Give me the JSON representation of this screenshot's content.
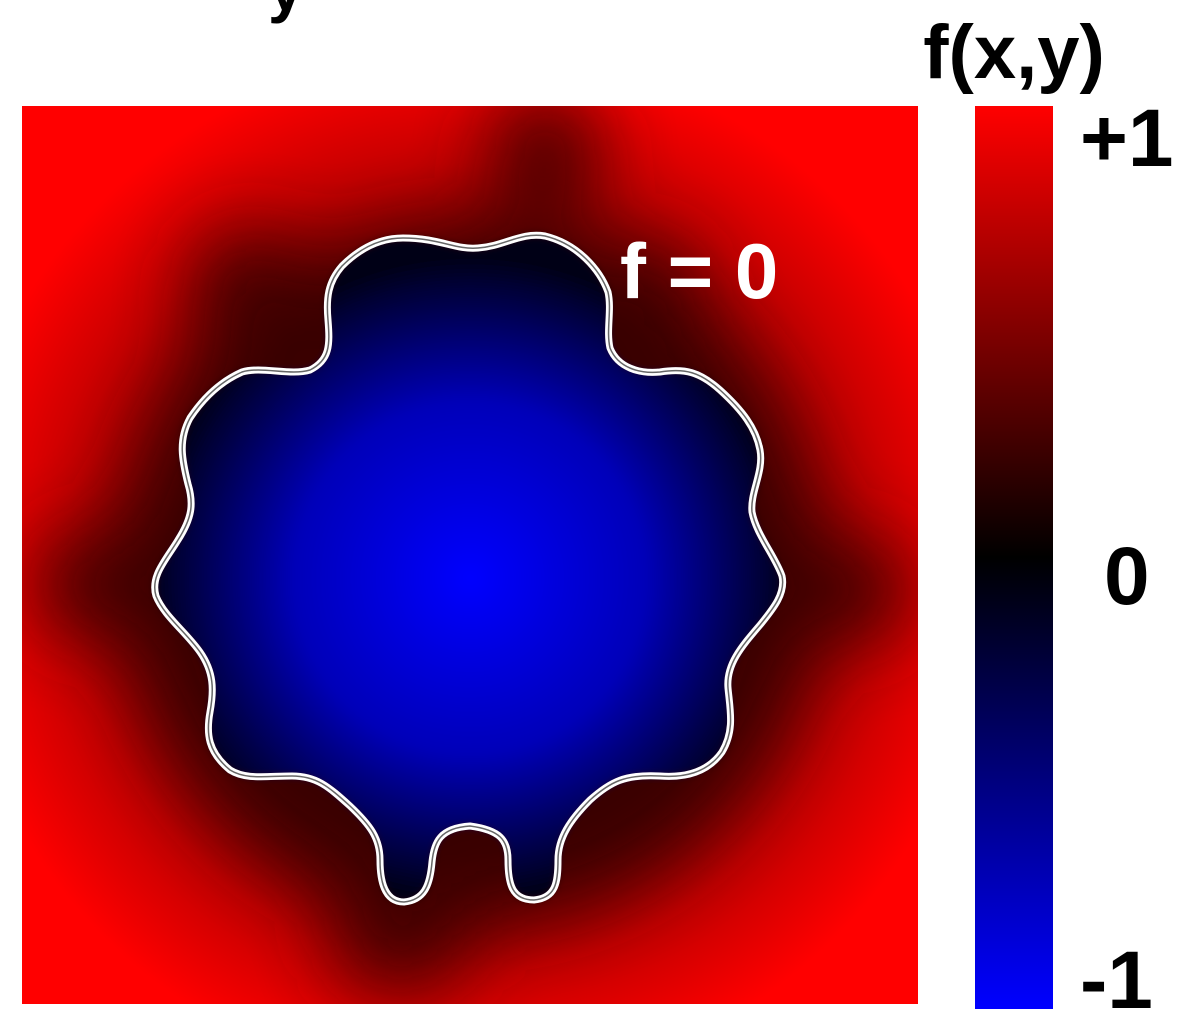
{
  "cropped_top_glyph": "y",
  "colorbar": {
    "title": "f(x,y)",
    "tick_max": "+1",
    "tick_mid": "0",
    "tick_min": "-1",
    "range": [
      -1,
      1
    ],
    "colors": {
      "max": "#ff0000",
      "mid": "#000000",
      "min": "#0000ff"
    }
  },
  "field": {
    "contour_label": "f = 0",
    "contour_color": "#ffffff",
    "inside_color": "#0000ff",
    "outside_color": "#ff0000",
    "zero_color": "#000000"
  }
}
